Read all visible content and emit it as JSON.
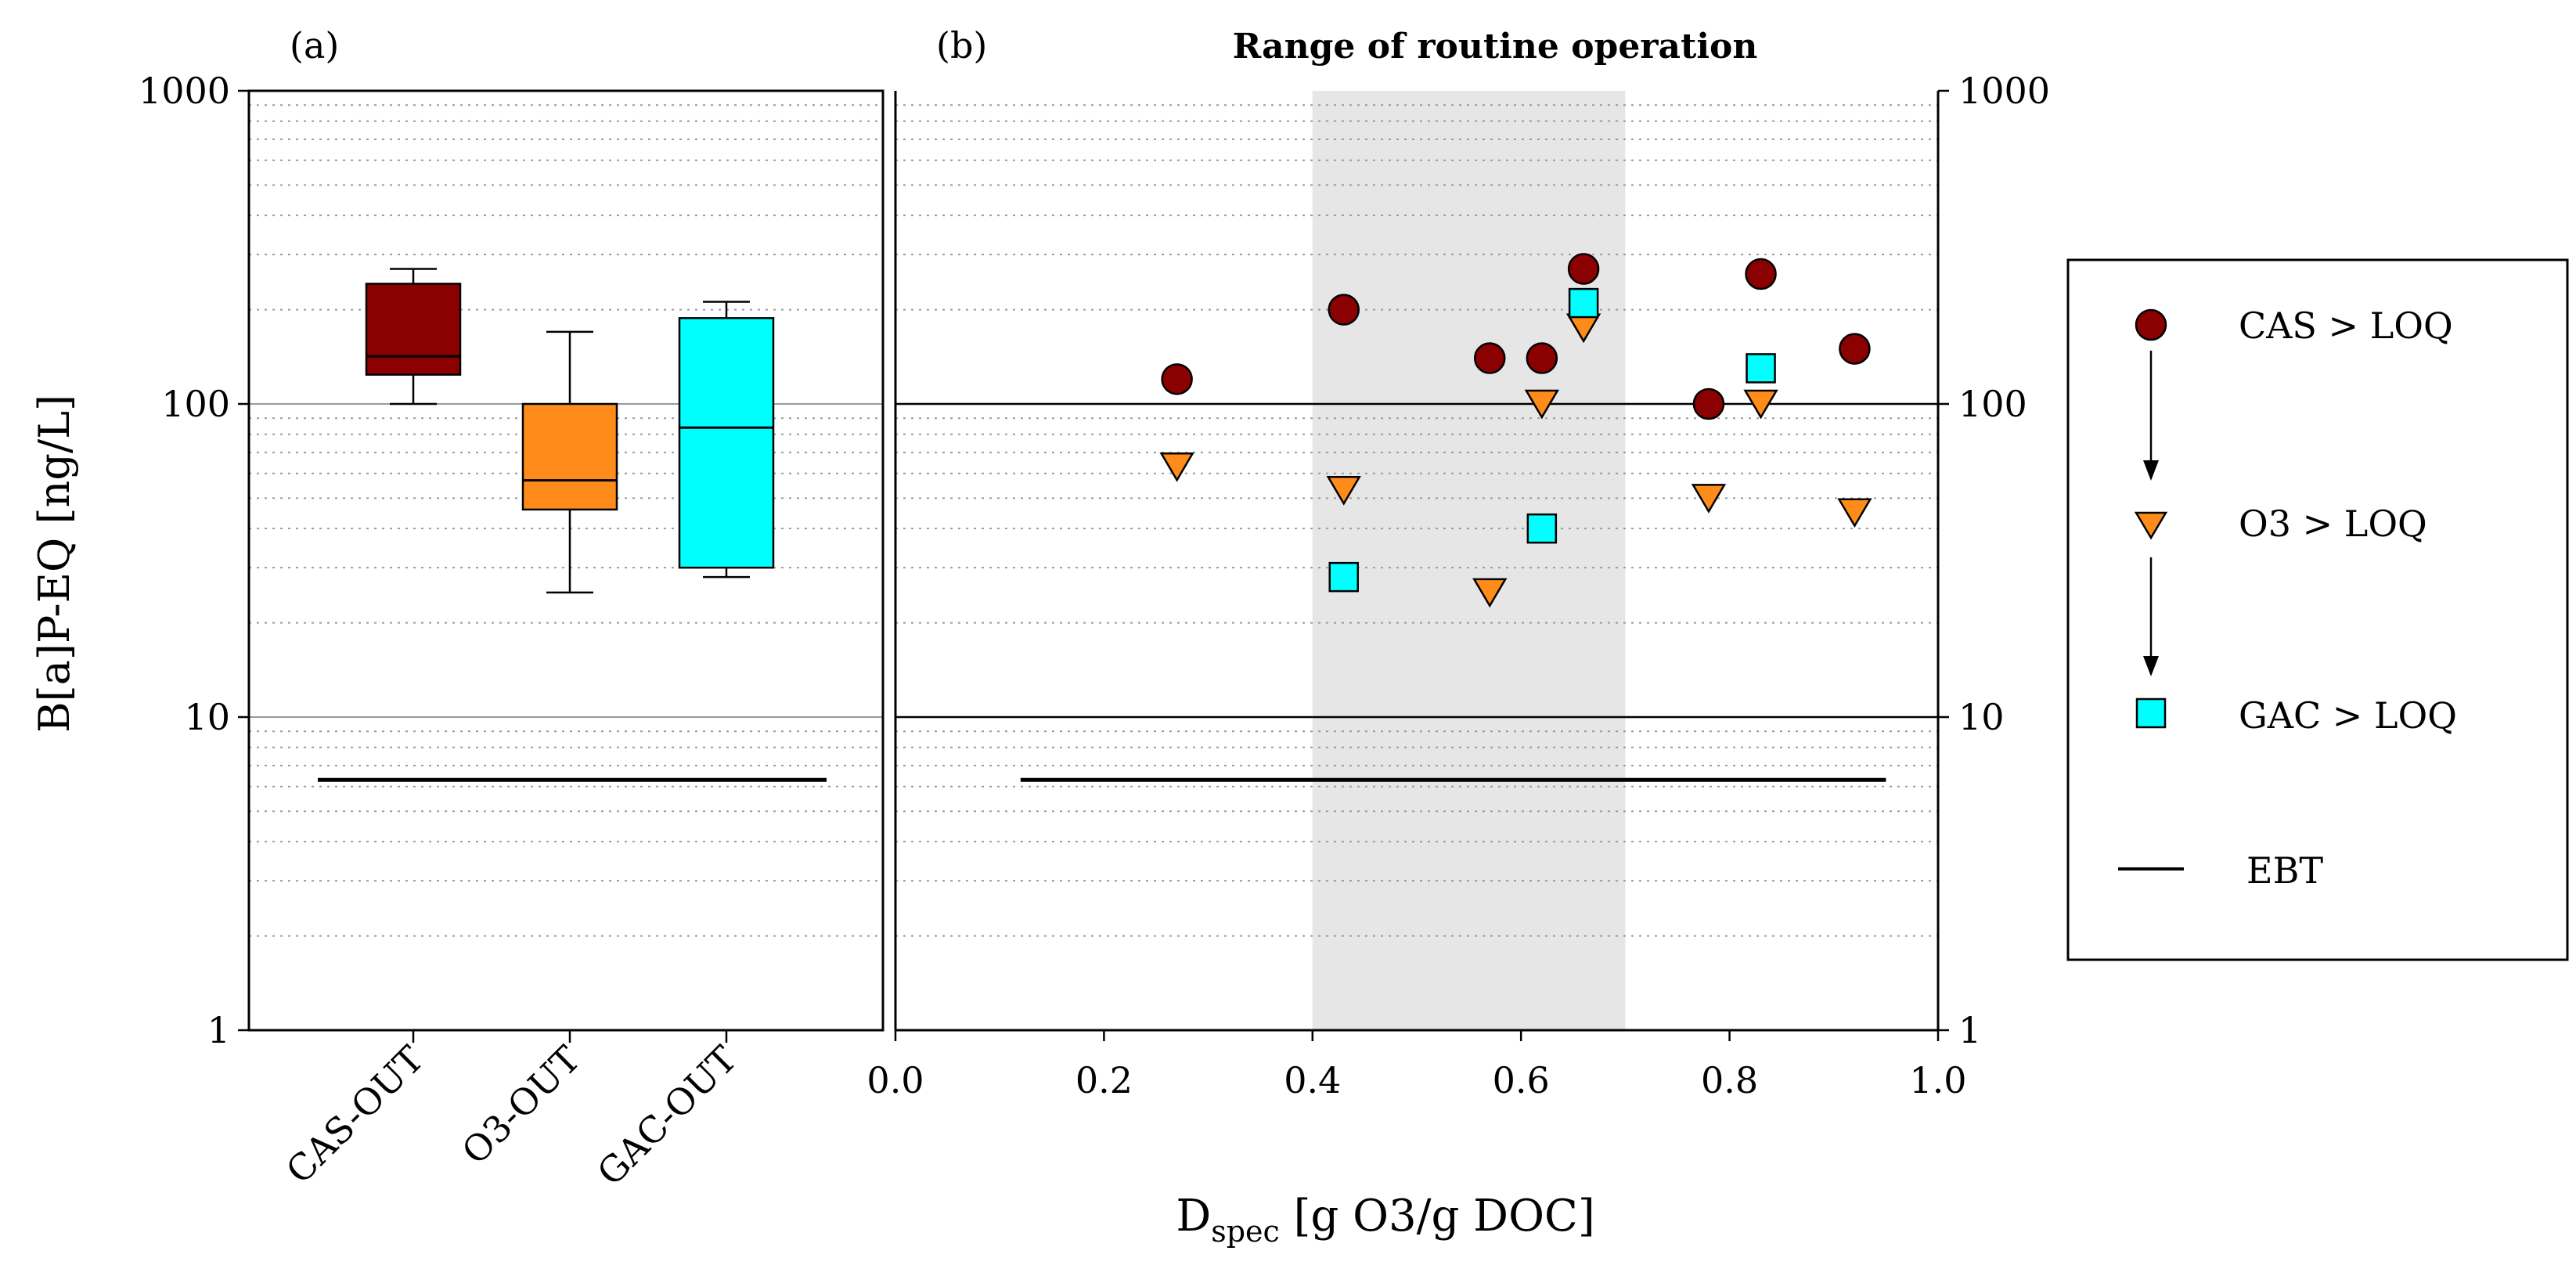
{
  "colors": {
    "cas": "#8b0000",
    "o3": "#ff8c1a",
    "gac": "#00ffff",
    "band": "#e6e6e6",
    "line": "#000000",
    "minor_grid": "#9a9a9a",
    "decade_grid": "#9a9a9a"
  },
  "figure": {
    "ylabel": "B[a]P-EQ [ng/L]",
    "xlabel_main": "D",
    "xlabel_sub": "spec",
    "xlabel_rest": " [g O3/g DOC]"
  },
  "chart_data": [
    {
      "panel": "a",
      "type": "box",
      "label": "(a)",
      "yscale": "log",
      "ylim": [
        1,
        1000
      ],
      "yticks": [
        1,
        10,
        100,
        1000
      ],
      "ytick_labels": [
        "1",
        "10",
        "100",
        "1000"
      ],
      "categories": [
        "CAS-OUT",
        "O3-OUT",
        "GAC-OUT"
      ],
      "boxes": [
        {
          "name": "CAS-OUT",
          "whisker_low": 100,
          "q1": 124,
          "median": 142,
          "q3": 242,
          "whisker_high": 270,
          "color_key": "cas"
        },
        {
          "name": "O3-OUT",
          "whisker_low": 25,
          "q1": 46,
          "median": 57,
          "q3": 100,
          "whisker_high": 170,
          "color_key": "o3"
        },
        {
          "name": "GAC-OUT",
          "whisker_low": 28,
          "q1": 30,
          "median": 84,
          "q3": 188,
          "whisker_high": 212,
          "color_key": "gac"
        }
      ],
      "ebt": 6.3
    },
    {
      "panel": "b",
      "type": "scatter",
      "label": "(b)",
      "title": "Range of routine operation",
      "xlabel": "Dspec [g O3/g DOC]",
      "ylabel": "B[a]P-EQ [ng/L]",
      "xlim": [
        0.0,
        1.0
      ],
      "xticks": [
        0.0,
        0.2,
        0.4,
        0.6,
        0.8,
        1.0
      ],
      "xtick_labels": [
        "0.0",
        "0.2",
        "0.4",
        "0.6",
        "0.8",
        "1.0"
      ],
      "yscale": "log",
      "ylim": [
        1,
        1000
      ],
      "yticks": [
        1,
        10,
        100,
        1000
      ],
      "ytick_labels": [
        "1",
        "10",
        "100",
        "1000"
      ],
      "shaded_range": [
        0.4,
        0.7
      ],
      "ebt": {
        "value": 6.3,
        "x_range": [
          0.12,
          0.95
        ]
      },
      "series": [
        {
          "name": "CAS > LOQ",
          "marker": "circle",
          "color_key": "cas",
          "points": [
            [
              0.27,
              120
            ],
            [
              0.43,
              200
            ],
            [
              0.57,
              140
            ],
            [
              0.62,
              140
            ],
            [
              0.66,
              270
            ],
            [
              0.78,
              100
            ],
            [
              0.83,
              260
            ],
            [
              0.92,
              150
            ]
          ]
        },
        {
          "name": "O3 > LOQ",
          "marker": "triangle-down",
          "color_key": "o3",
          "points": [
            [
              0.27,
              63
            ],
            [
              0.43,
              53
            ],
            [
              0.57,
              25
            ],
            [
              0.62,
              100
            ],
            [
              0.66,
              175
            ],
            [
              0.78,
              50
            ],
            [
              0.83,
              100
            ],
            [
              0.92,
              45
            ]
          ]
        },
        {
          "name": "GAC > LOQ",
          "marker": "square",
          "color_key": "gac",
          "points": [
            [
              0.43,
              28
            ],
            [
              0.62,
              40
            ],
            [
              0.66,
              210
            ],
            [
              0.83,
              130
            ]
          ]
        }
      ]
    }
  ],
  "legend": {
    "items": [
      {
        "label": "CAS > LOQ",
        "marker": "circle",
        "color_key": "cas"
      },
      {
        "label": "O3 > LOQ",
        "marker": "triangle-down",
        "color_key": "o3"
      },
      {
        "label": "GAC > LOQ",
        "marker": "square",
        "color_key": "gac"
      },
      {
        "label": "EBT",
        "marker": "line",
        "color_key": "line"
      }
    ]
  }
}
